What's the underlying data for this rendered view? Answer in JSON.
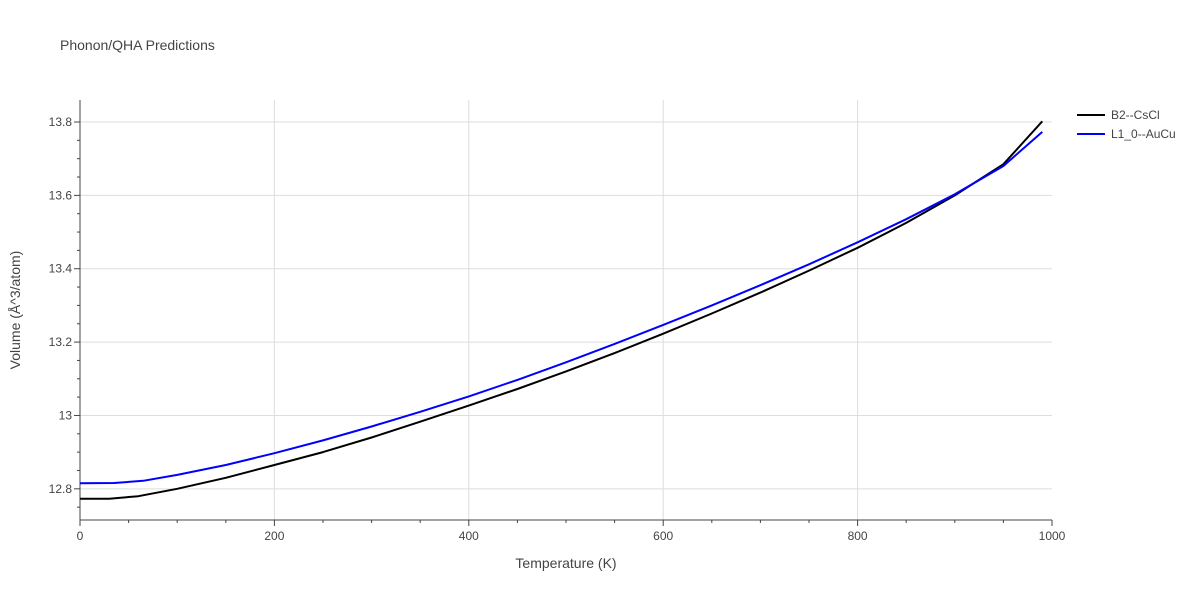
{
  "chart_data": {
    "type": "line",
    "title": "Phonon/QHA Predictions",
    "xlabel": "Temperature (K)",
    "ylabel": "Volume (Å^3/atom)",
    "xlim": [
      0,
      1000
    ],
    "ylim": [
      12.715,
      13.86
    ],
    "x_ticks": [
      0,
      200,
      400,
      600,
      800,
      1000
    ],
    "x_tick_labels": [
      "0",
      "200",
      "400",
      "600",
      "800",
      "1000"
    ],
    "y_ticks": [
      12.8,
      13.0,
      13.2,
      13.4,
      13.6,
      13.8
    ],
    "y_tick_labels": [
      "12.8",
      "13",
      "13.2",
      "13.4",
      "13.6",
      "13.8"
    ],
    "grid": true,
    "legend_position": "top-right",
    "series": [
      {
        "name": "B2--CsCl",
        "color": "#000000",
        "x": [
          0,
          30,
          60,
          100,
          150,
          200,
          250,
          300,
          350,
          400,
          450,
          500,
          550,
          600,
          650,
          700,
          750,
          800,
          850,
          900,
          950,
          990
        ],
        "y": [
          12.773,
          12.773,
          12.78,
          12.8,
          12.83,
          12.865,
          12.9,
          12.94,
          12.983,
          13.027,
          13.072,
          13.12,
          13.17,
          13.223,
          13.278,
          13.335,
          13.395,
          13.457,
          13.525,
          13.6,
          13.685,
          13.802
        ]
      },
      {
        "name": "L1_0--AuCu",
        "color": "#0000ff",
        "x": [
          0,
          35,
          65,
          100,
          150,
          200,
          250,
          300,
          350,
          400,
          450,
          500,
          550,
          600,
          650,
          700,
          750,
          800,
          850,
          900,
          950,
          990
        ],
        "y": [
          12.815,
          12.816,
          12.822,
          12.838,
          12.865,
          12.897,
          12.932,
          12.97,
          13.01,
          13.052,
          13.097,
          13.145,
          13.195,
          13.247,
          13.3,
          13.355,
          13.412,
          13.472,
          13.535,
          13.603,
          13.68,
          13.773
        ]
      }
    ]
  }
}
